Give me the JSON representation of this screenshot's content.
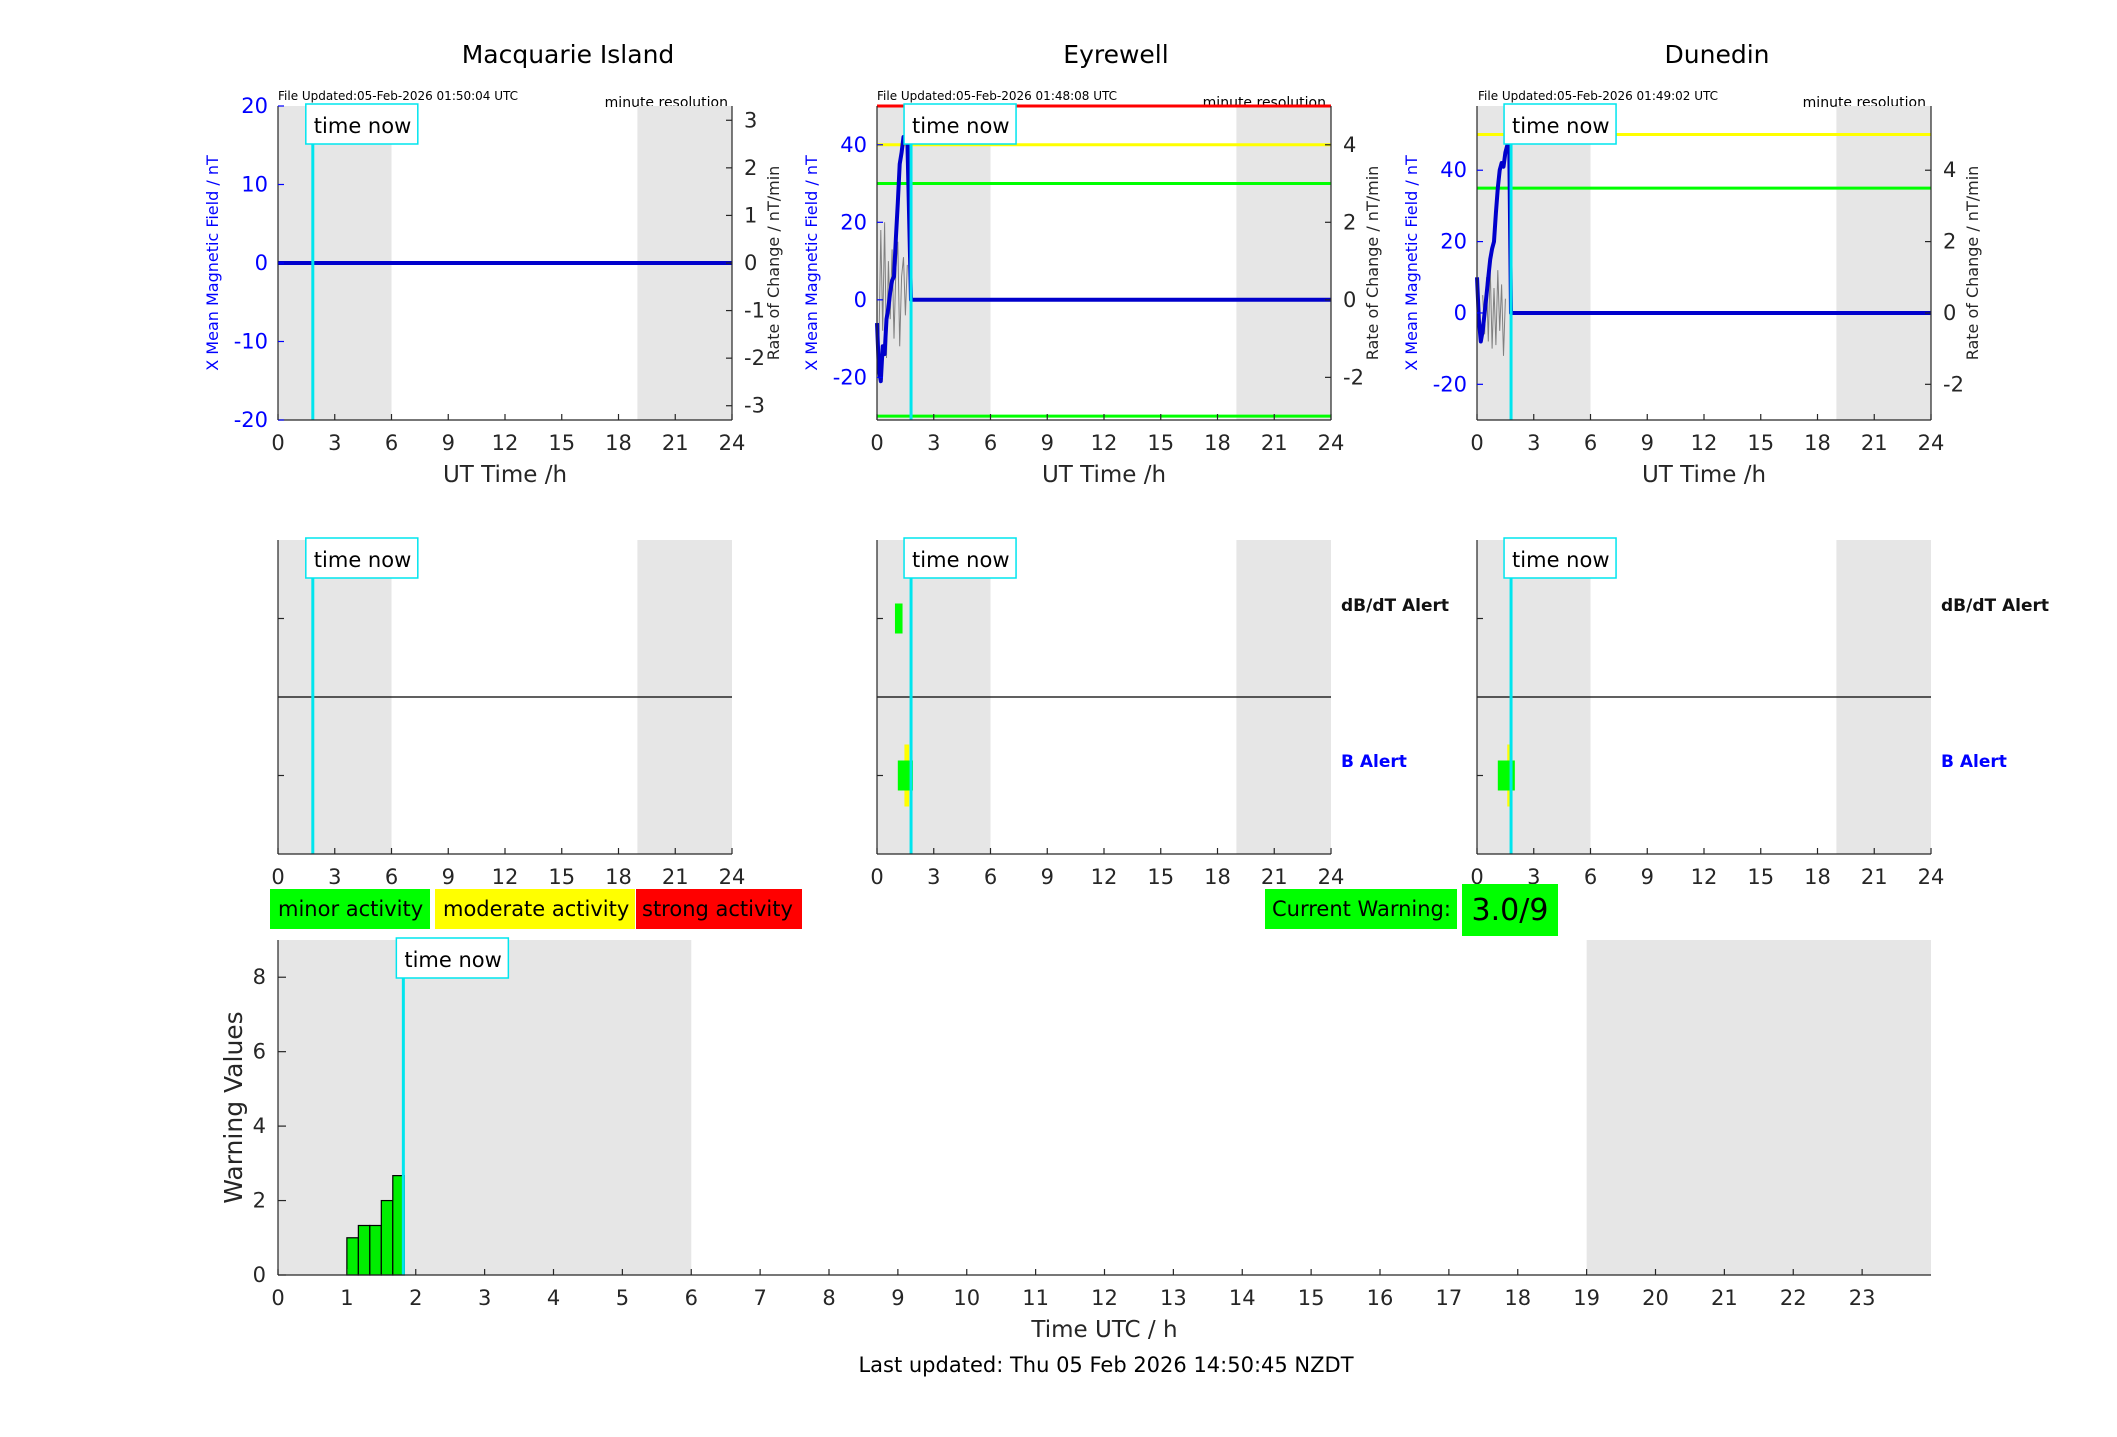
{
  "figure": {
    "footer": "Last updated: Thu 05 Feb 2026 14:50:45 NZDT"
  },
  "colors": {
    "axis": "#262626",
    "night_shade": "#e6e6e6",
    "x_line": "#0000cc",
    "x_axis_label": "#0000ff",
    "rate_line": "#808080",
    "time_now": "#00e5ee",
    "red": "#ff0000",
    "yellow": "#ffff00",
    "green": "#00ff00",
    "dark_green_bar": "#00ee00"
  },
  "chart_data": [
    {
      "id": "macquarie-field",
      "type": "line",
      "title": "Macquarie Island",
      "file_updated": "File Updated:05-Feb-2026 01:50:04 UTC",
      "resolution": "minute resolution",
      "time_now_label": "time now",
      "xlabel": "UT Time /h",
      "ylabel": "X Mean Magnetic Field / nT",
      "ylabel_right": "Rate of Change / nT/min",
      "xlim": [
        0,
        24
      ],
      "ylim": [
        -20,
        20
      ],
      "ylim_right": [
        -3.3,
        3.3
      ],
      "xticks": [
        "0",
        "3",
        "6",
        "9",
        "12",
        "15",
        "18",
        "21",
        "24"
      ],
      "yticks": [
        "-20",
        "-10",
        "0",
        "10",
        "20"
      ],
      "yticks_right": [
        "-3",
        "-2",
        "-1",
        "0",
        "1",
        "2",
        "3"
      ],
      "shade_ranges": [
        [
          0,
          6
        ],
        [
          19,
          24
        ]
      ],
      "time_now": 1.84,
      "thresholds": [],
      "series": [
        {
          "values_x": [
            0,
            24
          ],
          "values_y": [
            0,
            0
          ]
        }
      ]
    },
    {
      "id": "eyrewell-field",
      "type": "line",
      "title": "Eyrewell",
      "file_updated": "File Updated:05-Feb-2026 01:48:08 UTC",
      "resolution": "minute resolution",
      "time_now_label": "time now",
      "xlabel": "UT Time /h",
      "ylabel": "X Mean Magnetic Field / nT",
      "ylabel_right": "Rate of Change / nT/min",
      "xlim": [
        0,
        24
      ],
      "ylim": [
        -31,
        50
      ],
      "ylim_right": [
        -3.1,
        5.0
      ],
      "xticks": [
        "0",
        "3",
        "6",
        "9",
        "12",
        "15",
        "18",
        "21",
        "24"
      ],
      "yticks": [
        "-20",
        "0",
        "20",
        "40"
      ],
      "yticks_right": [
        "-2",
        "0",
        "2",
        "4"
      ],
      "shade_ranges": [
        [
          0,
          6
        ],
        [
          19,
          24
        ]
      ],
      "time_now": 1.8,
      "thresholds": [
        {
          "value": 50,
          "color": "red"
        },
        {
          "value": 40,
          "color": "yellow"
        },
        {
          "value": 30,
          "color": "green"
        },
        {
          "value": -30,
          "color": "green"
        }
      ],
      "series": [
        {
          "values_x": [
            0,
            0.1,
            0.2,
            0.3,
            0.4,
            0.5,
            0.6,
            0.7,
            0.8,
            0.9,
            1.0,
            1.1,
            1.2,
            1.3,
            1.4,
            1.5,
            1.55,
            1.6,
            1.8,
            24
          ],
          "values_y": [
            -6,
            -18,
            -21,
            -12,
            -14,
            -5,
            -2,
            2,
            5,
            6,
            16,
            25,
            35,
            38,
            42,
            41,
            43,
            42,
            0,
            0
          ]
        }
      ],
      "rate_series": [
        {
          "values_x": [
            0.1,
            0.2,
            0.3,
            0.4,
            0.5,
            0.6,
            0.7,
            0.8,
            0.9,
            1.0,
            1.1,
            1.2,
            1.3,
            1.4,
            1.5,
            1.6
          ],
          "values_y": [
            -1.2,
            1.8,
            -0.8,
            2.0,
            -1.5,
            1.0,
            -0.5,
            1.3,
            -1.0,
            0.8,
            1.5,
            -1.2,
            0.6,
            1.1,
            -0.4,
            0.9
          ]
        }
      ]
    },
    {
      "id": "dunedin-field",
      "type": "line",
      "title": "Dunedin",
      "file_updated": "File Updated:05-Feb-2026 01:49:02 UTC",
      "resolution": "minute resolution",
      "time_now_label": "time now",
      "xlabel": "UT Time /h",
      "ylabel": "X Mean Magnetic Field / nT",
      "ylabel_right": "Rate of Change / nT/min",
      "xlim": [
        0,
        24
      ],
      "ylim": [
        -30,
        58
      ],
      "ylim_right": [
        -3.0,
        5.8
      ],
      "xticks": [
        "0",
        "3",
        "6",
        "9",
        "12",
        "15",
        "18",
        "21",
        "24"
      ],
      "yticks": [
        "-20",
        "0",
        "20",
        "40"
      ],
      "yticks_right": [
        "-2",
        "0",
        "2",
        "4"
      ],
      "shade_ranges": [
        [
          0,
          6
        ],
        [
          19,
          24
        ]
      ],
      "time_now": 1.8,
      "thresholds": [
        {
          "value": 50,
          "color": "yellow"
        },
        {
          "value": 35,
          "color": "green"
        }
      ],
      "series": [
        {
          "values_x": [
            0,
            0.1,
            0.2,
            0.3,
            0.4,
            0.5,
            0.6,
            0.7,
            0.8,
            0.9,
            1.0,
            1.1,
            1.2,
            1.3,
            1.4,
            1.5,
            1.6,
            1.7,
            1.8,
            24
          ],
          "values_y": [
            10,
            -2,
            -8,
            -5,
            0,
            5,
            10,
            15,
            18,
            20,
            28,
            35,
            40,
            42,
            41,
            45,
            47,
            48,
            0,
            0
          ]
        }
      ],
      "rate_series": [
        {
          "values_x": [
            0.3,
            0.4,
            0.5,
            0.6,
            0.7,
            0.8,
            0.9,
            1.0,
            1.1,
            1.2,
            1.3,
            1.4,
            1.5
          ],
          "values_y": [
            0.5,
            -0.6,
            1.0,
            -0.8,
            1.3,
            -1.0,
            0.7,
            -0.9,
            1.2,
            -0.5,
            0.8,
            -1.2,
            0.4
          ]
        }
      ]
    },
    {
      "id": "macquarie-alerts",
      "type": "bar",
      "time_now_label": "time now",
      "xlim": [
        0,
        24
      ],
      "xticks": [
        "0",
        "3",
        "6",
        "9",
        "12",
        "15",
        "18",
        "21",
        "24"
      ],
      "shade_ranges": [
        [
          0,
          6
        ],
        [
          19,
          24
        ]
      ],
      "time_now": 1.84,
      "row_labels": [],
      "alerts": []
    },
    {
      "id": "eyrewell-alerts",
      "type": "bar",
      "time_now_label": "time now",
      "xlim": [
        0,
        24
      ],
      "xticks": [
        "0",
        "3",
        "6",
        "9",
        "12",
        "15",
        "18",
        "21",
        "24"
      ],
      "shade_ranges": [
        [
          0,
          6
        ],
        [
          19,
          24
        ]
      ],
      "time_now": 1.8,
      "row_labels": [
        {
          "text": "dB/dT Alert",
          "color": "#111111"
        },
        {
          "text": "B Alert",
          "color": "#0000ff"
        }
      ],
      "alerts": [
        {
          "row": 0,
          "start": 0.95,
          "end": 1.35,
          "color": "green"
        },
        {
          "row": 1,
          "start": 1.45,
          "end": 1.7,
          "color": "yellow"
        },
        {
          "row": 1,
          "start": 1.1,
          "end": 1.9,
          "color": "green"
        }
      ]
    },
    {
      "id": "dunedin-alerts",
      "type": "bar",
      "time_now_label": "time now",
      "xlim": [
        0,
        24
      ],
      "xticks": [
        "0",
        "3",
        "6",
        "9",
        "12",
        "15",
        "18",
        "21",
        "24"
      ],
      "shade_ranges": [
        [
          0,
          6
        ],
        [
          19,
          24
        ]
      ],
      "time_now": 1.8,
      "row_labels": [
        {
          "text": "dB/dT Alert",
          "color": "#111111"
        },
        {
          "text": "B Alert",
          "color": "#0000ff"
        }
      ],
      "alerts": [
        {
          "row": 1,
          "start": 1.6,
          "end": 1.8,
          "color": "yellow"
        },
        {
          "row": 1,
          "start": 1.1,
          "end": 2.0,
          "color": "green"
        }
      ]
    },
    {
      "id": "warning-values",
      "type": "bar",
      "time_now_label": "time now",
      "xlabel": "Time UTC / h",
      "ylabel": "Warning Values",
      "xlim": [
        0,
        24
      ],
      "ylim": [
        0,
        9
      ],
      "xticks": [
        "0",
        "1",
        "2",
        "3",
        "4",
        "5",
        "6",
        "7",
        "8",
        "9",
        "10",
        "11",
        "12",
        "13",
        "14",
        "15",
        "16",
        "17",
        "18",
        "19",
        "20",
        "21",
        "22",
        "23"
      ],
      "yticks": [
        "0",
        "2",
        "4",
        "6",
        "8"
      ],
      "shade_ranges": [
        [
          0,
          6
        ],
        [
          19,
          24
        ]
      ],
      "time_now": 1.82,
      "bar_width": 0.1667,
      "bars_x": [
        1.0,
        1.1667,
        1.3333,
        1.5,
        1.6667
      ],
      "bars_values": [
        1.0,
        1.33,
        1.33,
        2.0,
        2.67
      ]
    }
  ],
  "legend": {
    "minor": "minor activity",
    "moderate": "moderate activity",
    "strong": "strong activity"
  },
  "current_warning": {
    "label": "Current Warning:",
    "value": "3.0/9"
  }
}
